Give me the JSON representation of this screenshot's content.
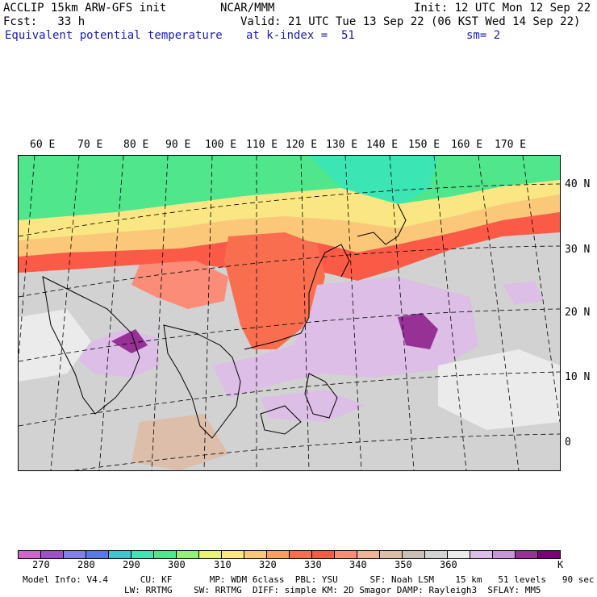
{
  "header": {
    "left1": "ACCLIP 15km ARW-GFS init",
    "left2": "Fcst:   33 h",
    "left3": "Equivalent potential temperature",
    "center1": "NCAR/MMM",
    "init": "Init: 12 UTC Mon 12 Sep 22",
    "valid": "Valid: 21 UTC Tue 13 Sep 22 (06 KST Wed 14 Sep 22)",
    "level": "at k-index =  51",
    "smooth": "sm= 2"
  },
  "lon_labels": [
    "60 E",
    "70 E",
    "80 E",
    "90 E",
    "100 E",
    "110 E",
    "120 E",
    "130 E",
    "140 E",
    "150 E",
    "160 E",
    "170 E"
  ],
  "lat_labels": [
    "40 N",
    "30 N",
    "20 N",
    "10 N",
    "0"
  ],
  "colorbar": {
    "colors": [
      "#cc66cc",
      "#a050c8",
      "#8080e6",
      "#5a78e6",
      "#3cc8d2",
      "#3ce6b4",
      "#50e68c",
      "#96f078",
      "#e6f578",
      "#fae682",
      "#fac878",
      "#faa060",
      "#fa6e50",
      "#fa5a46",
      "#fa8c78",
      "#f0b496",
      "#dcbeaa",
      "#c8c0b4",
      "#d2d2d2",
      "#ebebeb",
      "#dcbee6",
      "#c897d7",
      "#963296",
      "#780078"
    ],
    "labels": [
      "270",
      "280",
      "290",
      "300",
      "310",
      "320",
      "330",
      "340",
      "350",
      "360",
      "K"
    ],
    "unit": "K"
  },
  "footer": {
    "line1": "Model Info: V4.4      CU: KF       MP: WDM 6class  PBL: YSU      SF: Noah LSM    15 km   51 levels   90 sec",
    "line2": "LW: RRTMG    SW: RRTMG  DIFF: simple KM: 2D Smagor DAMP: Rayleigh3  SFLAY: MM5"
  }
}
